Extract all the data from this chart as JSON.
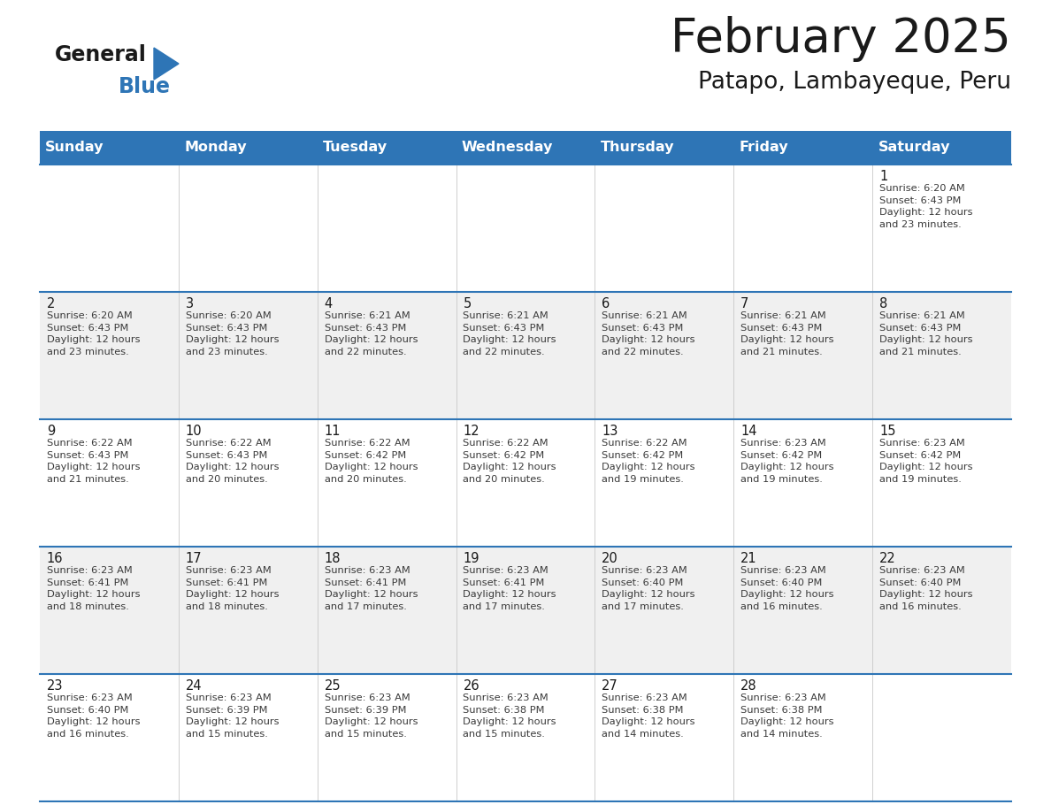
{
  "title": "February 2025",
  "subtitle": "Patapo, Lambayeque, Peru",
  "header_bg_color": "#2e75b6",
  "header_text_color": "#ffffff",
  "border_color": "#2e75b6",
  "grid_color": "#a0a0a0",
  "day_headers": [
    "Sunday",
    "Monday",
    "Tuesday",
    "Wednesday",
    "Thursday",
    "Friday",
    "Saturday"
  ],
  "weeks": [
    [
      {
        "day": "",
        "info": ""
      },
      {
        "day": "",
        "info": ""
      },
      {
        "day": "",
        "info": ""
      },
      {
        "day": "",
        "info": ""
      },
      {
        "day": "",
        "info": ""
      },
      {
        "day": "",
        "info": ""
      },
      {
        "day": "1",
        "info": "Sunrise: 6:20 AM\nSunset: 6:43 PM\nDaylight: 12 hours\nand 23 minutes."
      }
    ],
    [
      {
        "day": "2",
        "info": "Sunrise: 6:20 AM\nSunset: 6:43 PM\nDaylight: 12 hours\nand 23 minutes."
      },
      {
        "day": "3",
        "info": "Sunrise: 6:20 AM\nSunset: 6:43 PM\nDaylight: 12 hours\nand 23 minutes."
      },
      {
        "day": "4",
        "info": "Sunrise: 6:21 AM\nSunset: 6:43 PM\nDaylight: 12 hours\nand 22 minutes."
      },
      {
        "day": "5",
        "info": "Sunrise: 6:21 AM\nSunset: 6:43 PM\nDaylight: 12 hours\nand 22 minutes."
      },
      {
        "day": "6",
        "info": "Sunrise: 6:21 AM\nSunset: 6:43 PM\nDaylight: 12 hours\nand 22 minutes."
      },
      {
        "day": "7",
        "info": "Sunrise: 6:21 AM\nSunset: 6:43 PM\nDaylight: 12 hours\nand 21 minutes."
      },
      {
        "day": "8",
        "info": "Sunrise: 6:21 AM\nSunset: 6:43 PM\nDaylight: 12 hours\nand 21 minutes."
      }
    ],
    [
      {
        "day": "9",
        "info": "Sunrise: 6:22 AM\nSunset: 6:43 PM\nDaylight: 12 hours\nand 21 minutes."
      },
      {
        "day": "10",
        "info": "Sunrise: 6:22 AM\nSunset: 6:43 PM\nDaylight: 12 hours\nand 20 minutes."
      },
      {
        "day": "11",
        "info": "Sunrise: 6:22 AM\nSunset: 6:42 PM\nDaylight: 12 hours\nand 20 minutes."
      },
      {
        "day": "12",
        "info": "Sunrise: 6:22 AM\nSunset: 6:42 PM\nDaylight: 12 hours\nand 20 minutes."
      },
      {
        "day": "13",
        "info": "Sunrise: 6:22 AM\nSunset: 6:42 PM\nDaylight: 12 hours\nand 19 minutes."
      },
      {
        "day": "14",
        "info": "Sunrise: 6:23 AM\nSunset: 6:42 PM\nDaylight: 12 hours\nand 19 minutes."
      },
      {
        "day": "15",
        "info": "Sunrise: 6:23 AM\nSunset: 6:42 PM\nDaylight: 12 hours\nand 19 minutes."
      }
    ],
    [
      {
        "day": "16",
        "info": "Sunrise: 6:23 AM\nSunset: 6:41 PM\nDaylight: 12 hours\nand 18 minutes."
      },
      {
        "day": "17",
        "info": "Sunrise: 6:23 AM\nSunset: 6:41 PM\nDaylight: 12 hours\nand 18 minutes."
      },
      {
        "day": "18",
        "info": "Sunrise: 6:23 AM\nSunset: 6:41 PM\nDaylight: 12 hours\nand 17 minutes."
      },
      {
        "day": "19",
        "info": "Sunrise: 6:23 AM\nSunset: 6:41 PM\nDaylight: 12 hours\nand 17 minutes."
      },
      {
        "day": "20",
        "info": "Sunrise: 6:23 AM\nSunset: 6:40 PM\nDaylight: 12 hours\nand 17 minutes."
      },
      {
        "day": "21",
        "info": "Sunrise: 6:23 AM\nSunset: 6:40 PM\nDaylight: 12 hours\nand 16 minutes."
      },
      {
        "day": "22",
        "info": "Sunrise: 6:23 AM\nSunset: 6:40 PM\nDaylight: 12 hours\nand 16 minutes."
      }
    ],
    [
      {
        "day": "23",
        "info": "Sunrise: 6:23 AM\nSunset: 6:40 PM\nDaylight: 12 hours\nand 16 minutes."
      },
      {
        "day": "24",
        "info": "Sunrise: 6:23 AM\nSunset: 6:39 PM\nDaylight: 12 hours\nand 15 minutes."
      },
      {
        "day": "25",
        "info": "Sunrise: 6:23 AM\nSunset: 6:39 PM\nDaylight: 12 hours\nand 15 minutes."
      },
      {
        "day": "26",
        "info": "Sunrise: 6:23 AM\nSunset: 6:38 PM\nDaylight: 12 hours\nand 15 minutes."
      },
      {
        "day": "27",
        "info": "Sunrise: 6:23 AM\nSunset: 6:38 PM\nDaylight: 12 hours\nand 14 minutes."
      },
      {
        "day": "28",
        "info": "Sunrise: 6:23 AM\nSunset: 6:38 PM\nDaylight: 12 hours\nand 14 minutes."
      },
      {
        "day": "",
        "info": ""
      }
    ]
  ],
  "logo_general_color": "#1a1a1a",
  "logo_blue_color": "#2e75b6",
  "title_fontsize": 38,
  "subtitle_fontsize": 19,
  "header_fontsize": 11.5,
  "day_num_fontsize": 10.5,
  "info_fontsize": 8.2
}
